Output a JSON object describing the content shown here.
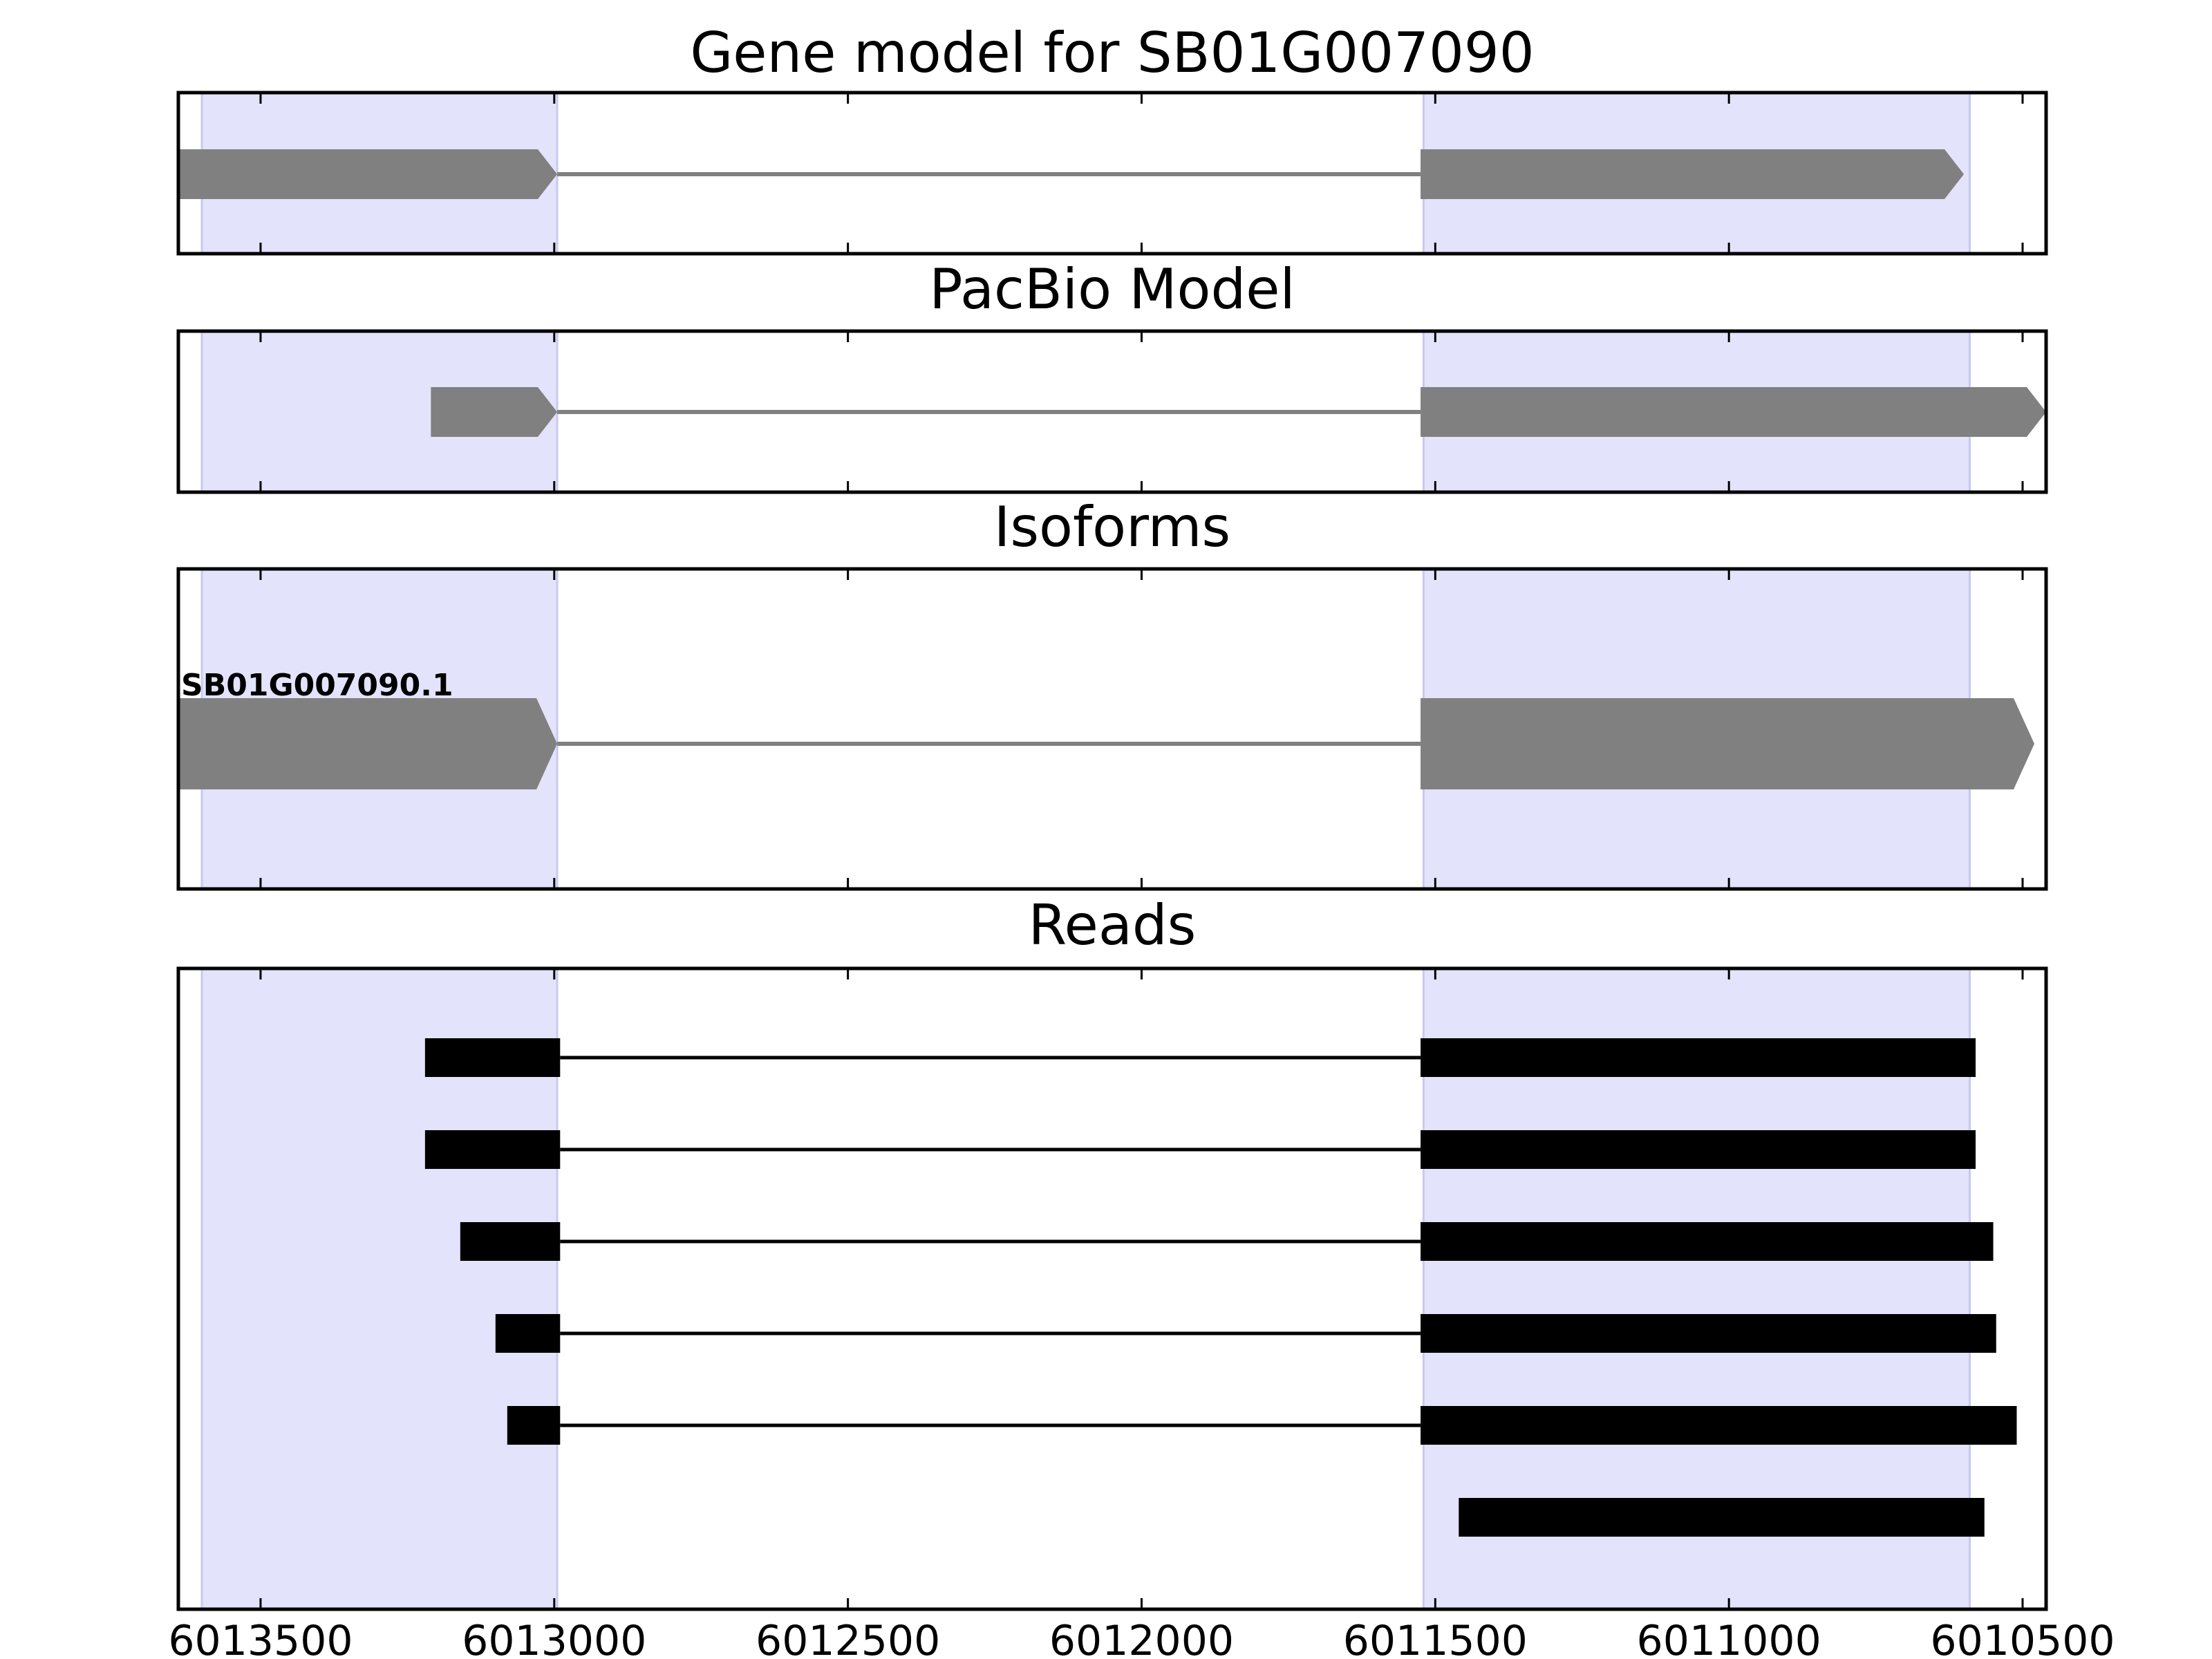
{
  "chart_data": {
    "type": "gene-structure",
    "x_axis": {
      "reversed": true,
      "xlim": [
        6013640,
        6010460
      ],
      "ticks": [
        6013500,
        6013000,
        6012500,
        6012000,
        6011500,
        6011000,
        6010500
      ],
      "tick_labels": [
        "6013500",
        "6013000",
        "6012500",
        "6012000",
        "6011500",
        "6011000",
        "6010500"
      ]
    },
    "highlight_regions": [
      {
        "start": 6013600,
        "end": 6012995
      },
      {
        "start": 6011520,
        "end": 6010590
      }
    ],
    "colors": {
      "highlight": "#e3e3fc",
      "highlight_edge": "#c9c9ee",
      "model": "#808080",
      "reads": "#000000",
      "axes": "#000000"
    },
    "panels": [
      {
        "title": "Gene model for SB01G007090",
        "kind": "model",
        "features": [
          {
            "exons": [
              [
                6013640,
                6012995
              ],
              [
                6011525,
                6010600
              ]
            ],
            "strand": "-"
          }
        ]
      },
      {
        "title": "PacBio Model",
        "kind": "model",
        "features": [
          {
            "exons": [
              [
                6013210,
                6012995
              ],
              [
                6011525,
                6010460
              ]
            ],
            "strand": "-"
          }
        ]
      },
      {
        "title": "Isoforms",
        "kind": "model",
        "features": [
          {
            "label": "SB01G007090.1",
            "exons": [
              [
                6013640,
                6012995
              ],
              [
                6011525,
                6010480
              ]
            ],
            "strand": "-"
          }
        ]
      },
      {
        "title": "Reads",
        "kind": "reads",
        "features": [
          {
            "exons": [
              [
                6013220,
                6012990
              ],
              [
                6011525,
                6010580
              ]
            ]
          },
          {
            "exons": [
              [
                6013220,
                6012990
              ],
              [
                6011525,
                6010580
              ]
            ]
          },
          {
            "exons": [
              [
                6013160,
                6012990
              ],
              [
                6011525,
                6010550
              ]
            ]
          },
          {
            "exons": [
              [
                6013100,
                6012990
              ],
              [
                6011525,
                6010545
              ]
            ]
          },
          {
            "exons": [
              [
                6013080,
                6012990
              ],
              [
                6011525,
                6010510
              ]
            ]
          },
          {
            "exons": [
              [
                6011460,
                6010565
              ]
            ]
          }
        ]
      }
    ]
  }
}
